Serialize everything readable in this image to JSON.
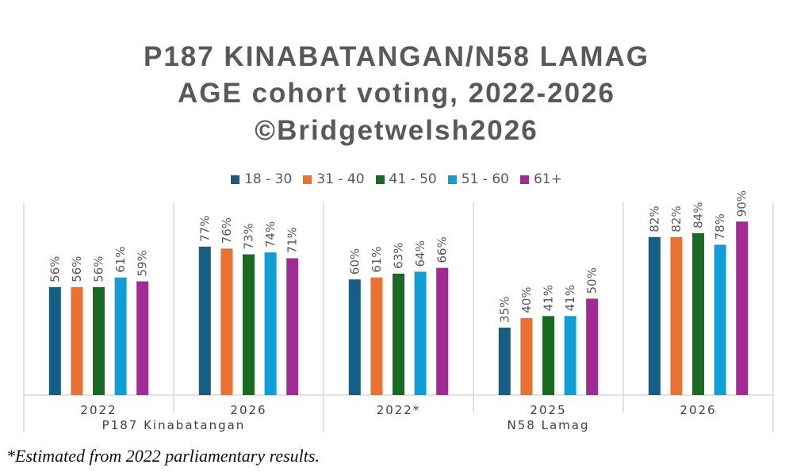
{
  "chart_data": {
    "type": "bar",
    "title": [
      "P187 KINABATANGAN/N58 LAMAG",
      "AGE cohort voting, 2022-2026",
      "©Bridgetwelsh2026"
    ],
    "xlabel": "",
    "ylabel": "",
    "ylim": [
      0,
      100
    ],
    "grid": false,
    "legend_position": "top",
    "groups": [
      {
        "name": "P187 Kinabatangan",
        "categories": [
          "2022",
          "2026"
        ]
      },
      {
        "name": "N58 Lamag",
        "categories": [
          "2022*",
          "2025",
          "2026"
        ]
      }
    ],
    "categories": [
      "2022",
      "2026",
      "2022*",
      "2025",
      "2026"
    ],
    "series": [
      {
        "name": "18 - 30",
        "color": "#175e84",
        "values": [
          56,
          77,
          60,
          35,
          82
        ]
      },
      {
        "name": "31 - 40",
        "color": "#e97132",
        "values": [
          56,
          76,
          61,
          40,
          82
        ]
      },
      {
        "name": "41 - 50",
        "color": "#196b24",
        "values": [
          56,
          73,
          63,
          41,
          84
        ]
      },
      {
        "name": "51 - 60",
        "color": "#0f9ed5",
        "values": [
          61,
          74,
          64,
          41,
          78
        ]
      },
      {
        "name": "61+",
        "color": "#a02b93",
        "values": [
          59,
          71,
          66,
          50,
          90
        ]
      }
    ],
    "value_suffix": "%"
  },
  "footnote": "*Estimated from 2022 parliamentary results."
}
